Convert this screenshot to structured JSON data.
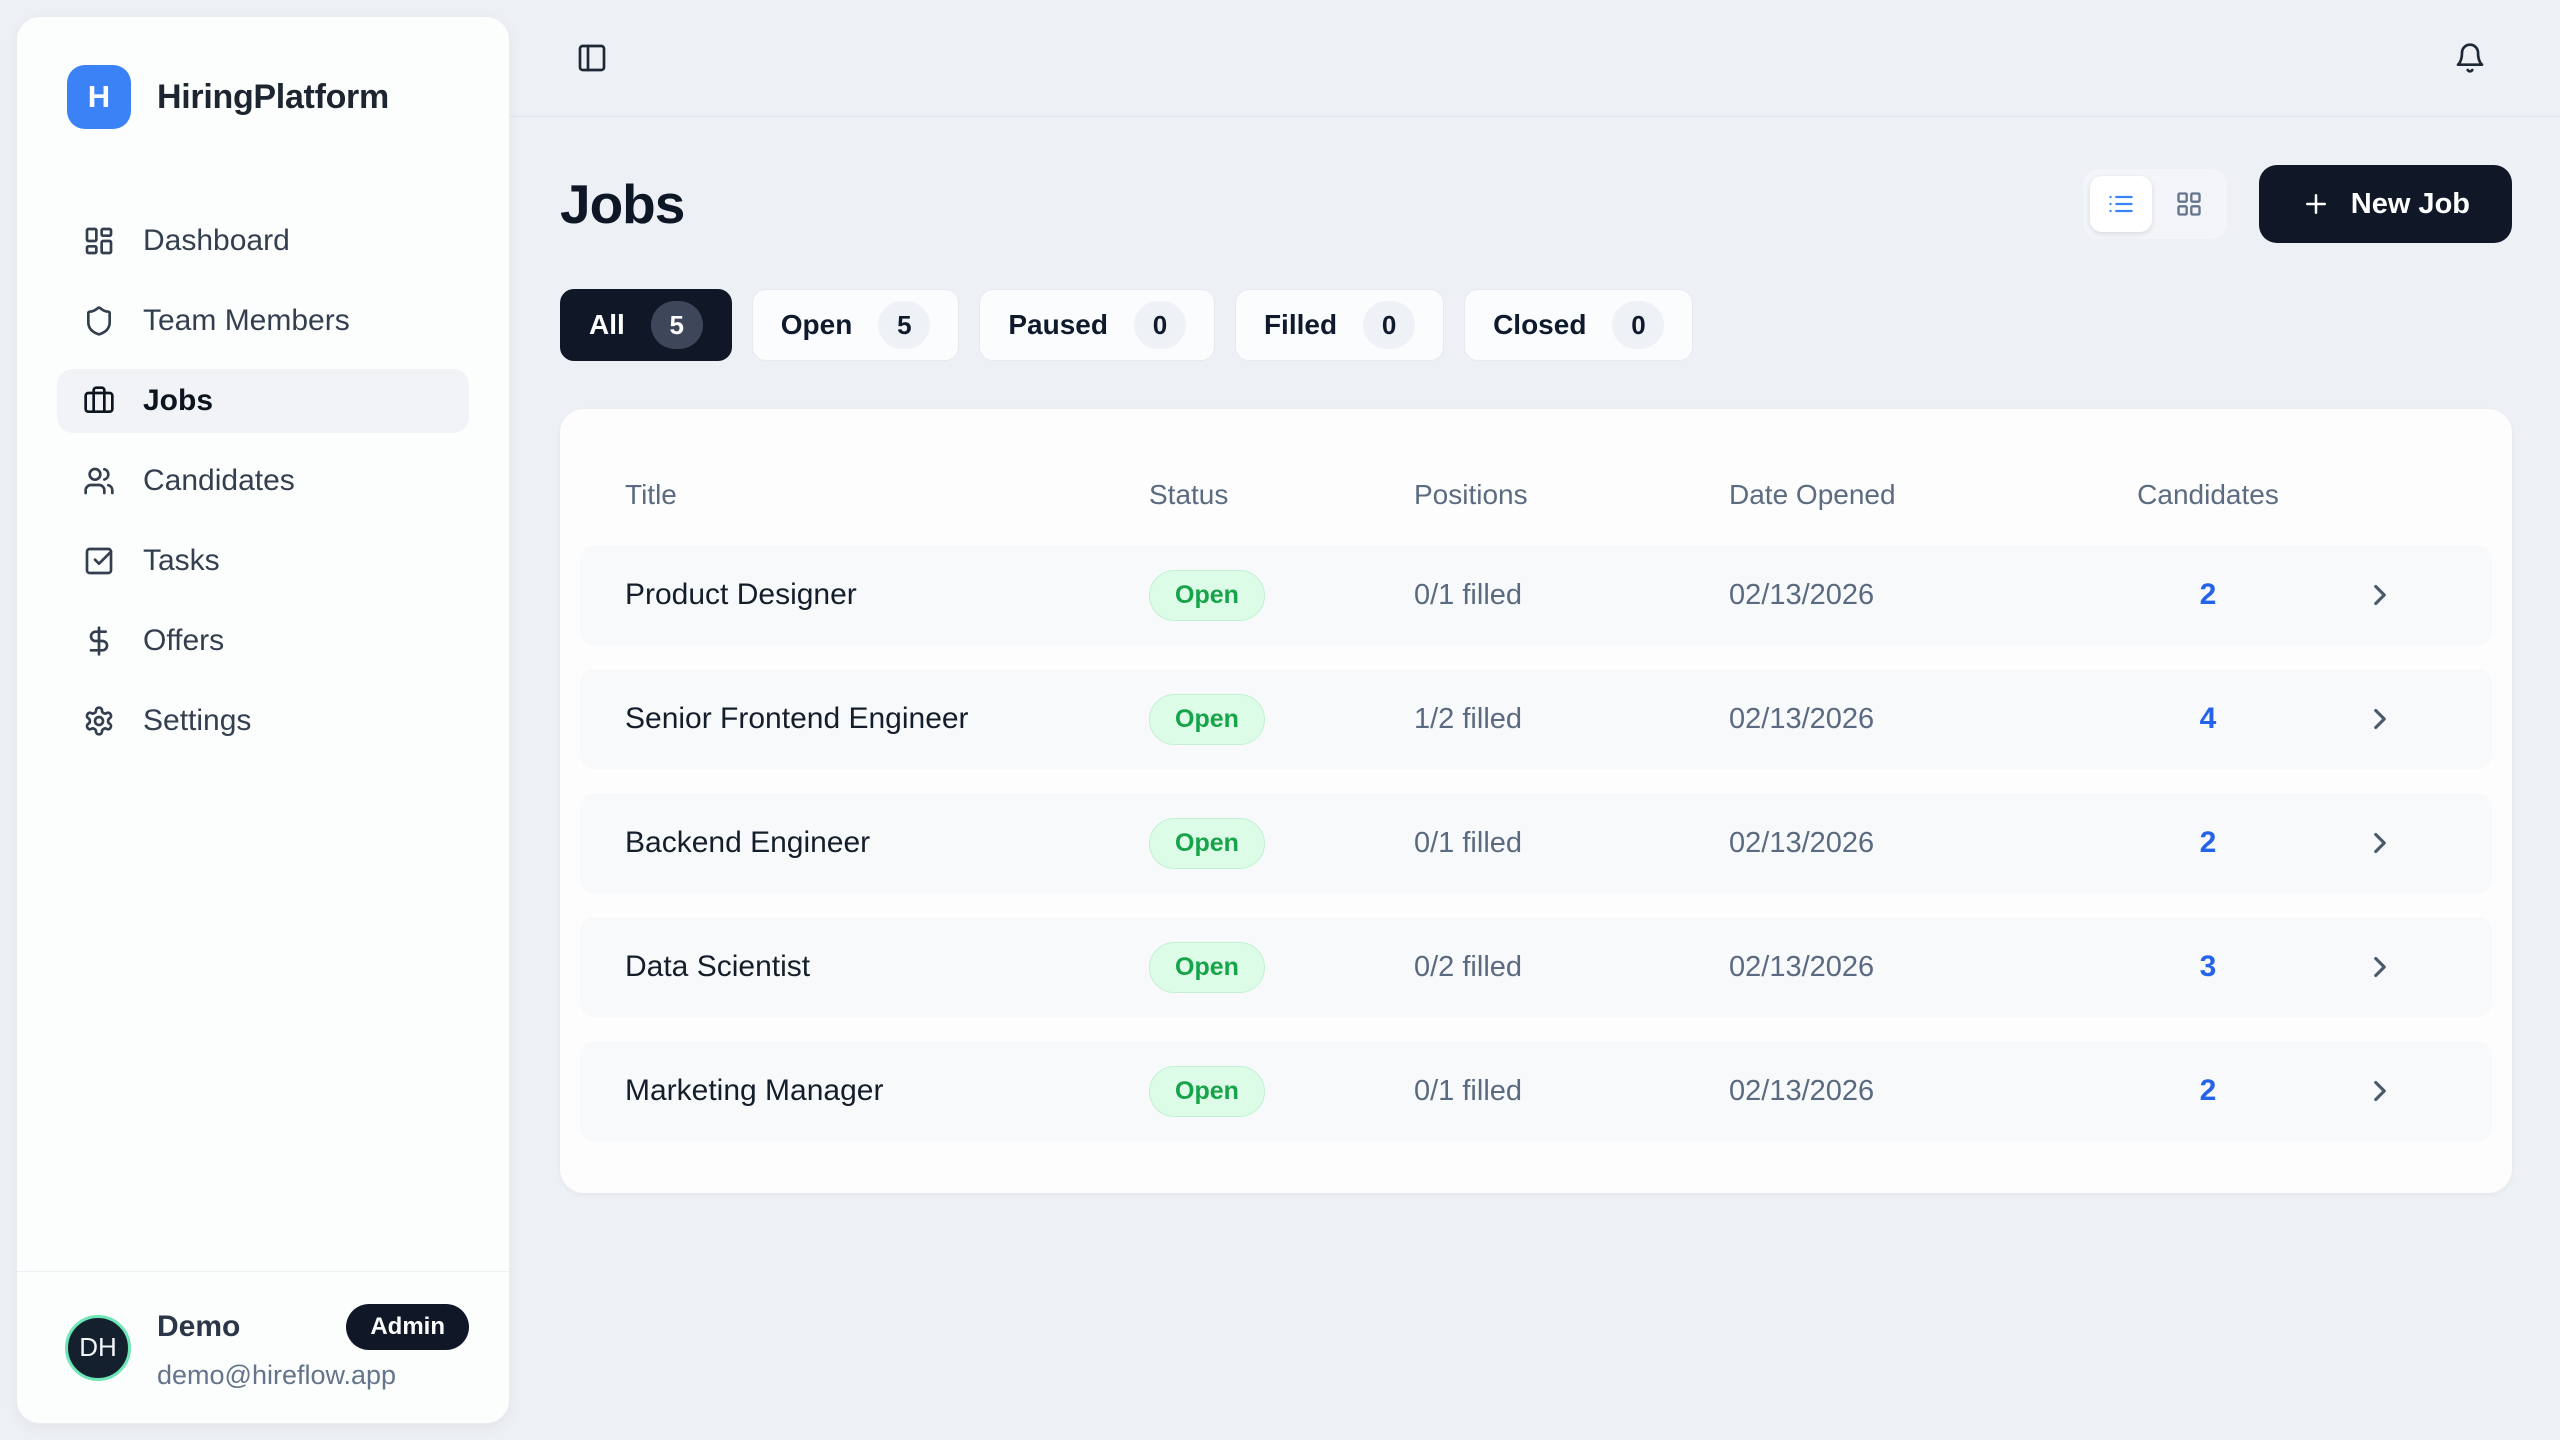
{
  "colors": {
    "page_background": "#edf0f4",
    "accent_blue": "#3b82f6",
    "navy": "#101828",
    "open_badge_bg": "#dcfce7",
    "open_badge_text": "#16a34a",
    "candidates_link": "#2563eb",
    "avatar_ring": "#6ee7b7"
  },
  "sidebar": {
    "brand": {
      "initial": "H",
      "name": "HiringPlatform"
    },
    "items": [
      {
        "label": "Dashboard",
        "icon": "layout-dashboard",
        "active": false
      },
      {
        "label": "Team Members",
        "icon": "shield",
        "active": false
      },
      {
        "label": "Jobs",
        "icon": "briefcase",
        "active": true
      },
      {
        "label": "Candidates",
        "icon": "users",
        "active": false
      },
      {
        "label": "Tasks",
        "icon": "square-check",
        "active": false
      },
      {
        "label": "Offers",
        "icon": "dollar-sign",
        "active": false
      },
      {
        "label": "Settings",
        "icon": "settings",
        "active": false
      }
    ],
    "user": {
      "initials": "DH",
      "name": "Demo",
      "role_badge": "Admin",
      "email": "demo@hireflow.app"
    }
  },
  "topbar": {
    "sidebar_toggle_icon": "panel-left",
    "notifications_icon": "bell"
  },
  "page": {
    "title": "Jobs",
    "new_job_label": "New Job",
    "new_job_icon": "plus",
    "view_toggle": {
      "options": [
        "list",
        "grid"
      ],
      "active": "list"
    }
  },
  "filters": [
    {
      "label": "All",
      "count": "5",
      "active": true
    },
    {
      "label": "Open",
      "count": "5",
      "active": false
    },
    {
      "label": "Paused",
      "count": "0",
      "active": false
    },
    {
      "label": "Filled",
      "count": "0",
      "active": false
    },
    {
      "label": "Closed",
      "count": "0",
      "active": false
    }
  ],
  "table": {
    "headers": [
      "Title",
      "Status",
      "Positions",
      "Date Opened",
      "Candidates"
    ],
    "rows": [
      {
        "title": "Product Designer",
        "status": "Open",
        "positions": "0/1 filled",
        "date_opened": "02/13/2026",
        "candidates": "2"
      },
      {
        "title": "Senior Frontend Engineer",
        "status": "Open",
        "positions": "1/2 filled",
        "date_opened": "02/13/2026",
        "candidates": "4"
      },
      {
        "title": "Backend Engineer",
        "status": "Open",
        "positions": "0/1 filled",
        "date_opened": "02/13/2026",
        "candidates": "2"
      },
      {
        "title": "Data Scientist",
        "status": "Open",
        "positions": "0/2 filled",
        "date_opened": "02/13/2026",
        "candidates": "3"
      },
      {
        "title": "Marketing Manager",
        "status": "Open",
        "positions": "0/1 filled",
        "date_opened": "02/13/2026",
        "candidates": "2"
      }
    ]
  }
}
